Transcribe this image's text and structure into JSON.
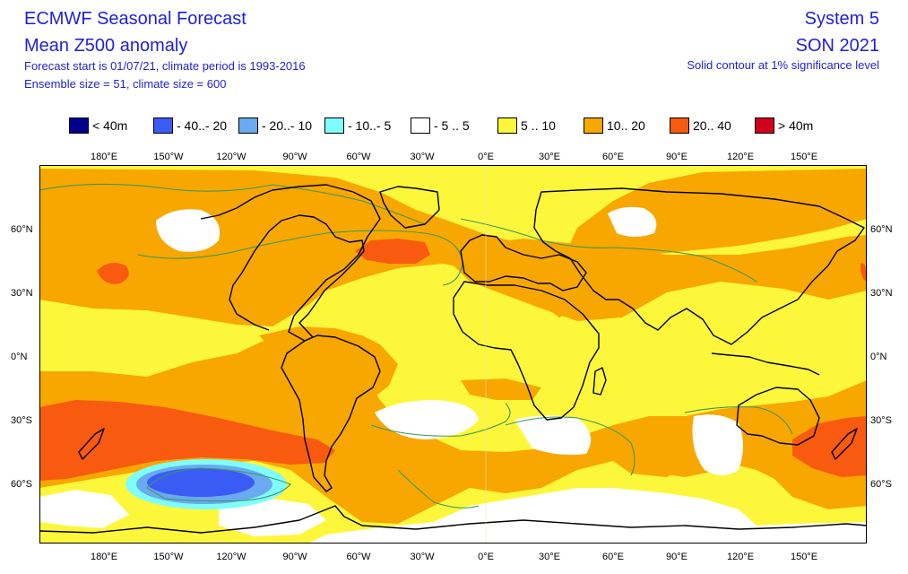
{
  "header": {
    "title": "ECMWF Seasonal Forecast",
    "subtitle": "Mean Z500 anomaly",
    "info1": "Forecast start is 01/07/21, climate period is 1993-2016",
    "info2": "Ensemble size = 51, climate size = 600",
    "system": "System 5",
    "season": "SON 2021",
    "note": "Solid contour at 1% significance level"
  },
  "legend": [
    {
      "label": "< 40m",
      "color": "#00008b"
    },
    {
      "label": "- 40..- 20",
      "color": "#3a5cf5"
    },
    {
      "label": "- 20..- 10",
      "color": "#6aaaf0"
    },
    {
      "label": "- 10..- 5",
      "color": "#7ffdfd"
    },
    {
      "label": "- 5 .. 5",
      "color": "#ffffff"
    },
    {
      "label": "5 .. 10",
      "color": "#fdf73b"
    },
    {
      "label": "10.. 20",
      "color": "#f8a700"
    },
    {
      "label": "20.. 40",
      "color": "#f85a10"
    },
    {
      "label": "> 40m",
      "color": "#d0021b"
    }
  ],
  "lon_ticks": [
    "180°E",
    "150°W",
    "120°W",
    "90°W",
    "60°W",
    "30°W",
    "0°E",
    "30°E",
    "60°E",
    "90°E",
    "120°E",
    "150°E"
  ],
  "lat_ticks": [
    "60°N",
    "30°N",
    "0°N",
    "30°S",
    "60°S"
  ],
  "colors": {
    "yellow": "#fdf73b",
    "orange": "#f8a700",
    "red": "#f85a10",
    "white": "#ffffff",
    "cyan": "#7ffdfd",
    "lightblue": "#6aaaf0",
    "blue": "#3a5cf5",
    "significance_contour": "#3c9a5a"
  }
}
